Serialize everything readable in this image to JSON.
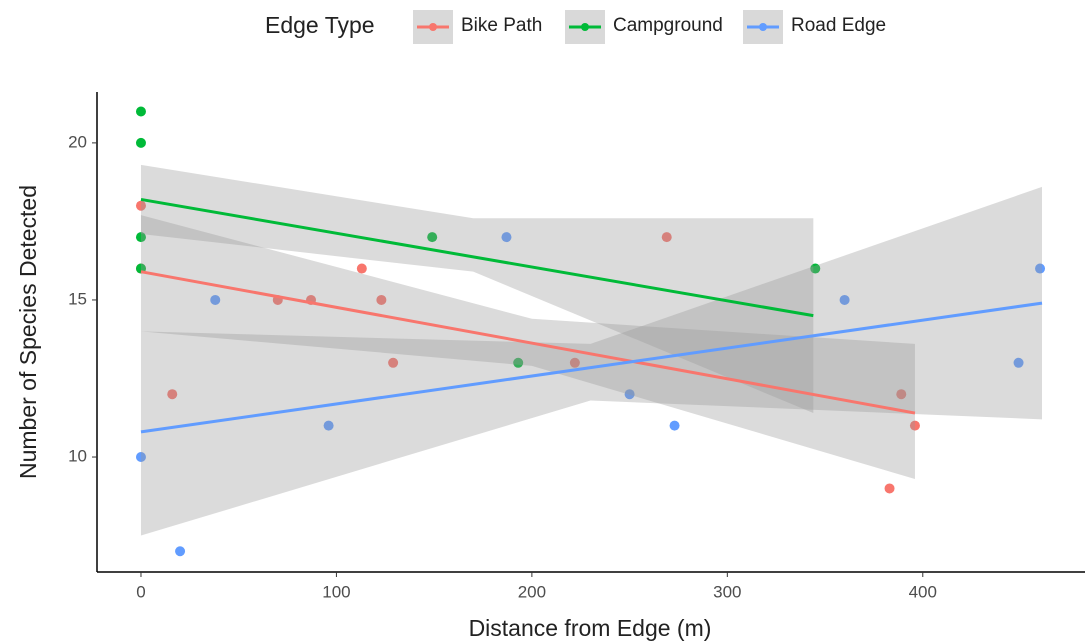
{
  "chart_data": {
    "type": "scatter",
    "xlabel": "Distance from Edge (m)",
    "ylabel": "Number of Species Detected",
    "legend_title": "Edge Type",
    "legend_position": "top",
    "grid": false,
    "xlim": [
      -22.5,
      483
    ],
    "xticks": [
      0,
      100,
      200,
      300,
      400
    ],
    "ylim": [
      6.34,
      21.62
    ],
    "yticks": [
      10,
      15,
      20
    ],
    "series": [
      {
        "name": "Bike Path",
        "color": "#F8766D",
        "x": [
          0,
          0,
          16,
          70,
          87,
          113,
          123,
          129,
          222,
          269,
          383,
          389,
          396
        ],
        "values": [
          18,
          16,
          12,
          15,
          15,
          16,
          15,
          13,
          13,
          17,
          9,
          12,
          11
        ],
        "fit_x": [
          0,
          396
        ],
        "fit_y": [
          15.9,
          11.4
        ],
        "band_x": [
          0,
          200,
          396
        ],
        "band_lower": [
          14.0,
          12.9,
          9.3
        ],
        "band_upper": [
          17.7,
          14.4,
          13.6
        ]
      },
      {
        "name": "Campground",
        "color": "#00BA38",
        "x": [
          0,
          0,
          0,
          0,
          149,
          193,
          345
        ],
        "values": [
          21,
          20,
          17,
          16,
          17,
          13,
          16
        ],
        "fit_x": [
          0,
          344
        ],
        "fit_y": [
          18.2,
          14.5
        ],
        "band_x": [
          0,
          170,
          344
        ],
        "band_lower": [
          17.1,
          15.9,
          11.4
        ],
        "band_upper": [
          19.3,
          17.6,
          17.6
        ]
      },
      {
        "name": "Road Edge",
        "color": "#619CFF",
        "x": [
          0,
          20,
          38,
          96,
          187,
          250,
          273,
          360,
          449,
          460
        ],
        "values": [
          10,
          7,
          15,
          11,
          17,
          12,
          11,
          15,
          13,
          16
        ],
        "fit_x": [
          0,
          461
        ],
        "fit_y": [
          10.8,
          14.9
        ],
        "band_x": [
          0,
          230,
          461
        ],
        "band_lower": [
          7.5,
          11.8,
          11.2
        ],
        "band_upper": [
          14.0,
          13.6,
          18.6
        ]
      }
    ]
  }
}
